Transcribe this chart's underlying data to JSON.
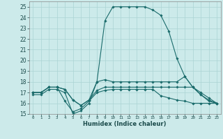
{
  "xlabel": "Humidex (Indice chaleur)",
  "xlim": [
    -0.5,
    23.5
  ],
  "ylim": [
    15,
    25.5
  ],
  "yticks": [
    15,
    16,
    17,
    18,
    19,
    20,
    21,
    22,
    23,
    24,
    25
  ],
  "xticks": [
    0,
    1,
    2,
    3,
    4,
    5,
    6,
    7,
    8,
    9,
    10,
    11,
    12,
    13,
    14,
    15,
    16,
    17,
    18,
    19,
    20,
    21,
    22,
    23
  ],
  "bg_color": "#cceaea",
  "line_color": "#1a6b6b",
  "grid_color": "#aad4d4",
  "lines": [
    {
      "x": [
        0,
        1,
        2,
        3,
        4,
        5,
        6,
        7,
        8,
        9,
        10,
        11,
        12,
        13,
        14,
        15,
        16,
        17,
        18,
        19,
        20,
        21,
        22,
        23
      ],
      "y": [
        16.8,
        16.8,
        17.3,
        17.3,
        17.0,
        15.0,
        15.3,
        16.0,
        18.0,
        23.7,
        25.0,
        25.0,
        25.0,
        25.0,
        25.0,
        24.7,
        24.2,
        22.7,
        20.2,
        18.5,
        17.5,
        16.8,
        16.3,
        16.0
      ]
    },
    {
      "x": [
        0,
        1,
        2,
        3,
        4,
        5,
        6,
        7,
        8,
        9,
        10,
        11,
        12,
        13,
        14,
        15,
        16,
        17,
        18,
        19,
        20,
        21,
        22,
        23
      ],
      "y": [
        17.0,
        17.0,
        17.5,
        17.5,
        17.3,
        16.3,
        15.8,
        16.3,
        18.0,
        18.2,
        18.0,
        18.0,
        18.0,
        18.0,
        18.0,
        18.0,
        18.0,
        18.0,
        18.0,
        18.5,
        17.5,
        17.0,
        16.5,
        16.0
      ]
    },
    {
      "x": [
        0,
        1,
        2,
        3,
        4,
        5,
        6,
        7,
        8,
        9,
        10,
        11,
        12,
        13,
        14,
        15,
        16,
        17,
        18,
        19,
        20,
        21,
        22,
        23
      ],
      "y": [
        17.0,
        17.0,
        17.5,
        17.5,
        17.3,
        16.3,
        15.8,
        16.3,
        17.2,
        17.5,
        17.5,
        17.5,
        17.5,
        17.5,
        17.5,
        17.5,
        17.5,
        17.5,
        17.5,
        17.5,
        17.5,
        16.8,
        16.2,
        16.0
      ]
    },
    {
      "x": [
        0,
        1,
        2,
        3,
        4,
        5,
        6,
        7,
        8,
        9,
        10,
        11,
        12,
        13,
        14,
        15,
        16,
        17,
        18,
        19,
        20,
        21,
        22,
        23
      ],
      "y": [
        17.0,
        17.0,
        17.5,
        17.5,
        16.2,
        15.2,
        15.5,
        16.2,
        17.0,
        17.2,
        17.3,
        17.3,
        17.3,
        17.3,
        17.3,
        17.3,
        16.7,
        16.5,
        16.3,
        16.2,
        16.0,
        16.0,
        16.0,
        16.0
      ]
    }
  ]
}
